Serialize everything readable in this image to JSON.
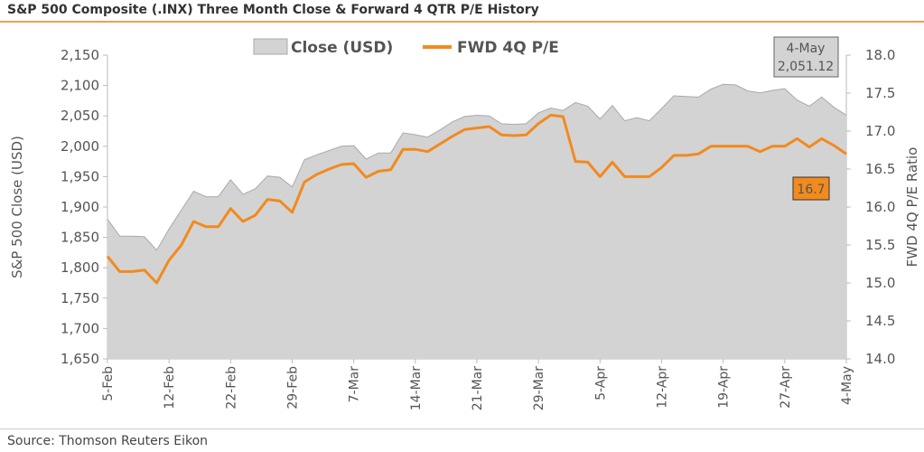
{
  "title": "S&P 500 Composite (.INX) Three Month Close & Forward 4 QTR P/E History",
  "source": "Source: Thomson Reuters Eikon",
  "colors": {
    "area_fill": "#d3d3d3",
    "area_stroke": "#a9a9a9",
    "line": "#f28a1e",
    "accent_rule": "#f0a050",
    "axis_text": "#555555"
  },
  "chart_data": {
    "type": "area",
    "title": "S&P 500 Composite (.INX) Three Month Close & Forward 4 QTR P/E History",
    "ylabel": "S&P 500 Close (USD)",
    "y2label": "FWD 4Q P/E Ratio",
    "ylim": [
      1650,
      2150
    ],
    "y2lim": [
      14.0,
      18.0
    ],
    "y_ticks": [
      "1,650",
      "1,700",
      "1,750",
      "1,800",
      "1,850",
      "1,900",
      "1,950",
      "2,000",
      "2,050",
      "2,100",
      "2,150"
    ],
    "y2_ticks": [
      "14.0",
      "14.5",
      "15.0",
      "15.5",
      "16.0",
      "16.5",
      "17.0",
      "17.5",
      "18.0"
    ],
    "x_tick_labels": [
      "5-Feb",
      "12-Feb",
      "22-Feb",
      "29-Feb",
      "7-Mar",
      "14-Mar",
      "21-Mar",
      "29-Mar",
      "5-Apr",
      "12-Apr",
      "19-Apr",
      "27-Apr",
      "4-May"
    ],
    "x_tick_index": [
      0,
      5,
      10,
      15,
      20,
      25,
      30,
      35,
      40,
      45,
      50,
      55,
      60
    ],
    "grid": false,
    "legend_position": "top-center",
    "series": [
      {
        "name": "Close (USD)",
        "type": "area",
        "axis": "left",
        "values": [
          1880,
          1852,
          1852,
          1851,
          1829,
          1864,
          1895,
          1926,
          1917,
          1917,
          1945,
          1921,
          1930,
          1951,
          1949,
          1933,
          1978,
          1986,
          1993,
          2000,
          2001,
          1979,
          1989,
          1989,
          2022,
          2019,
          2015,
          2027,
          2040,
          2049,
          2051,
          2050,
          2037,
          2036,
          2037,
          2055,
          2063,
          2059,
          2072,
          2066,
          2045,
          2067,
          2042,
          2047,
          2042,
          2062,
          2083,
          2082,
          2081,
          2094,
          2102,
          2101,
          2091,
          2088,
          2092,
          2095,
          2076,
          2066,
          2081,
          2064,
          2051.12
        ]
      },
      {
        "name": "FWD 4Q P/E",
        "type": "line",
        "axis": "right",
        "values": [
          15.35,
          15.15,
          15.15,
          15.17,
          15.0,
          15.3,
          15.5,
          15.81,
          15.74,
          15.74,
          15.98,
          15.81,
          15.89,
          16.1,
          16.08,
          15.93,
          16.33,
          16.43,
          16.5,
          16.56,
          16.57,
          16.39,
          16.47,
          16.49,
          16.76,
          16.76,
          16.73,
          16.83,
          16.93,
          17.02,
          17.04,
          17.06,
          16.95,
          16.94,
          16.95,
          17.1,
          17.21,
          17.19,
          16.6,
          16.59,
          16.4,
          16.59,
          16.4,
          16.4,
          16.4,
          16.52,
          16.68,
          16.68,
          16.7,
          16.8,
          16.8,
          16.8,
          16.8,
          16.73,
          16.8,
          16.8,
          16.9,
          16.79,
          16.9,
          16.81,
          16.7
        ]
      }
    ],
    "annotations": [
      {
        "text": "4-May\n2,051.12",
        "series": "Close (USD)",
        "style": "grey-box",
        "position": "top-right"
      },
      {
        "text": "16.7",
        "series": "FWD 4Q P/E",
        "style": "orange-box",
        "position": "right"
      }
    ],
    "annotation_lines": [
      "4-May",
      "2,051.12"
    ],
    "pe_label": "16.7"
  }
}
